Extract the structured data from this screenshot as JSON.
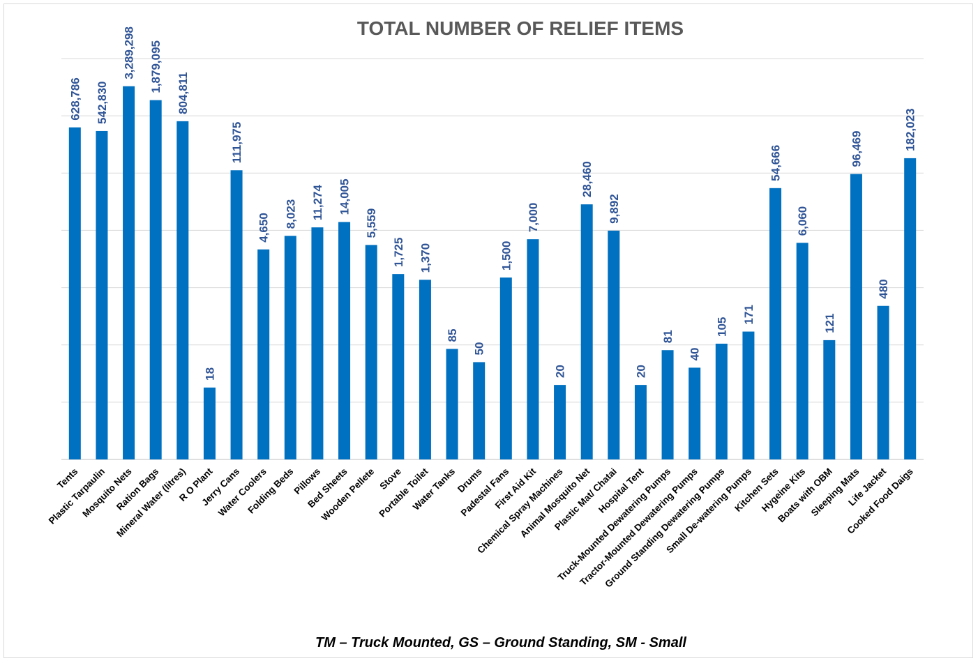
{
  "colors": {
    "bar": "#0070c0",
    "label": "#2f5496",
    "grid": "#d9d9d9",
    "axis": "#bfbfbf",
    "title": "#595959"
  },
  "footnote": "TM – Truck Mounted, GS – Ground Standing, SM - Small",
  "chart_data": {
    "type": "bar",
    "title": "TOTAL NUMBER OF RELIEF ITEMS",
    "xlabel": "",
    "ylabel": "",
    "scale": "log",
    "grid": true,
    "legend": "none",
    "categories": [
      "Tents",
      "Plastic Tarpaulin",
      "Mosquito Nets",
      "Ration Bags",
      "Mineral Water (litres)",
      "R O Plant",
      "Jerry Cans",
      "Water Coolers",
      "Folding Beds",
      "Pillows",
      "Bed Sheets",
      "Wooden Pellete",
      "Stove",
      "Portable Toilet",
      "Water Tanks",
      "Drums",
      "Padestal Fans",
      "First Aid Kit",
      "Chemical Spray Machines",
      "Animal Mosquito Net",
      "Plastic Mat/ Chatai",
      "Hospital Tent",
      "Truck-Mounted Dewatering Pumps",
      "Tractor-Mounted Dewatering Pumps",
      "Ground Standing Dewatering Pumps",
      "Small De-watering Pumps",
      "Kitchen Sets",
      "Hygeine Kits",
      "Boats with OBM",
      "Sleeping Mats",
      "Life Jacket",
      "Cooked Food Daigs"
    ],
    "values": [
      628786,
      542830,
      3289298,
      1879095,
      804811,
      18,
      111975,
      4650,
      8023,
      11274,
      14005,
      5559,
      1725,
      1370,
      85,
      50,
      1500,
      7000,
      20,
      28460,
      9892,
      20,
      81,
      40,
      105,
      171,
      54666,
      6060,
      121,
      96469,
      480,
      182023
    ],
    "value_labels": [
      "628,786",
      "542,830",
      "3,289,298",
      "1,879,095",
      "804,811",
      "18",
      "111,975",
      "4,650",
      "8,023",
      "11,274",
      "14,005",
      "5,559",
      "1,725",
      "1,370",
      "85",
      "50",
      "1,500",
      "7,000",
      "20",
      "28,460",
      "9,892",
      "20",
      "81",
      "40",
      "105",
      "171",
      "54,666",
      "6,060",
      "121",
      "96,469",
      "480",
      "182,023"
    ]
  }
}
